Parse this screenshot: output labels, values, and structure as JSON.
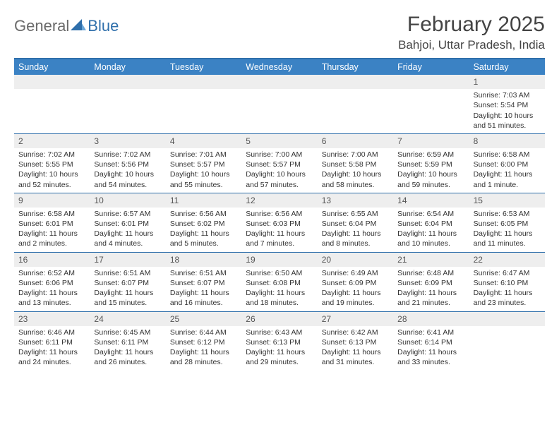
{
  "logo": {
    "general": "General",
    "blue": "Blue"
  },
  "title": "February 2025",
  "location": "Bahjoi, Uttar Pradesh, India",
  "colors": {
    "header_bar": "#3b82c4",
    "divider": "#2f6fab",
    "daynum_bg": "#eeeeee",
    "text": "#333333",
    "title_text": "#444444"
  },
  "daynames": [
    "Sunday",
    "Monday",
    "Tuesday",
    "Wednesday",
    "Thursday",
    "Friday",
    "Saturday"
  ],
  "weeks": [
    [
      {
        "empty": true
      },
      {
        "empty": true
      },
      {
        "empty": true
      },
      {
        "empty": true
      },
      {
        "empty": true
      },
      {
        "empty": true
      },
      {
        "day": "1",
        "sunrise": "Sunrise: 7:03 AM",
        "sunset": "Sunset: 5:54 PM",
        "daylight1": "Daylight: 10 hours",
        "daylight2": "and 51 minutes."
      }
    ],
    [
      {
        "day": "2",
        "sunrise": "Sunrise: 7:02 AM",
        "sunset": "Sunset: 5:55 PM",
        "daylight1": "Daylight: 10 hours",
        "daylight2": "and 52 minutes."
      },
      {
        "day": "3",
        "sunrise": "Sunrise: 7:02 AM",
        "sunset": "Sunset: 5:56 PM",
        "daylight1": "Daylight: 10 hours",
        "daylight2": "and 54 minutes."
      },
      {
        "day": "4",
        "sunrise": "Sunrise: 7:01 AM",
        "sunset": "Sunset: 5:57 PM",
        "daylight1": "Daylight: 10 hours",
        "daylight2": "and 55 minutes."
      },
      {
        "day": "5",
        "sunrise": "Sunrise: 7:00 AM",
        "sunset": "Sunset: 5:57 PM",
        "daylight1": "Daylight: 10 hours",
        "daylight2": "and 57 minutes."
      },
      {
        "day": "6",
        "sunrise": "Sunrise: 7:00 AM",
        "sunset": "Sunset: 5:58 PM",
        "daylight1": "Daylight: 10 hours",
        "daylight2": "and 58 minutes."
      },
      {
        "day": "7",
        "sunrise": "Sunrise: 6:59 AM",
        "sunset": "Sunset: 5:59 PM",
        "daylight1": "Daylight: 10 hours",
        "daylight2": "and 59 minutes."
      },
      {
        "day": "8",
        "sunrise": "Sunrise: 6:58 AM",
        "sunset": "Sunset: 6:00 PM",
        "daylight1": "Daylight: 11 hours",
        "daylight2": "and 1 minute."
      }
    ],
    [
      {
        "day": "9",
        "sunrise": "Sunrise: 6:58 AM",
        "sunset": "Sunset: 6:01 PM",
        "daylight1": "Daylight: 11 hours",
        "daylight2": "and 2 minutes."
      },
      {
        "day": "10",
        "sunrise": "Sunrise: 6:57 AM",
        "sunset": "Sunset: 6:01 PM",
        "daylight1": "Daylight: 11 hours",
        "daylight2": "and 4 minutes."
      },
      {
        "day": "11",
        "sunrise": "Sunrise: 6:56 AM",
        "sunset": "Sunset: 6:02 PM",
        "daylight1": "Daylight: 11 hours",
        "daylight2": "and 5 minutes."
      },
      {
        "day": "12",
        "sunrise": "Sunrise: 6:56 AM",
        "sunset": "Sunset: 6:03 PM",
        "daylight1": "Daylight: 11 hours",
        "daylight2": "and 7 minutes."
      },
      {
        "day": "13",
        "sunrise": "Sunrise: 6:55 AM",
        "sunset": "Sunset: 6:04 PM",
        "daylight1": "Daylight: 11 hours",
        "daylight2": "and 8 minutes."
      },
      {
        "day": "14",
        "sunrise": "Sunrise: 6:54 AM",
        "sunset": "Sunset: 6:04 PM",
        "daylight1": "Daylight: 11 hours",
        "daylight2": "and 10 minutes."
      },
      {
        "day": "15",
        "sunrise": "Sunrise: 6:53 AM",
        "sunset": "Sunset: 6:05 PM",
        "daylight1": "Daylight: 11 hours",
        "daylight2": "and 11 minutes."
      }
    ],
    [
      {
        "day": "16",
        "sunrise": "Sunrise: 6:52 AM",
        "sunset": "Sunset: 6:06 PM",
        "daylight1": "Daylight: 11 hours",
        "daylight2": "and 13 minutes."
      },
      {
        "day": "17",
        "sunrise": "Sunrise: 6:51 AM",
        "sunset": "Sunset: 6:07 PM",
        "daylight1": "Daylight: 11 hours",
        "daylight2": "and 15 minutes."
      },
      {
        "day": "18",
        "sunrise": "Sunrise: 6:51 AM",
        "sunset": "Sunset: 6:07 PM",
        "daylight1": "Daylight: 11 hours",
        "daylight2": "and 16 minutes."
      },
      {
        "day": "19",
        "sunrise": "Sunrise: 6:50 AM",
        "sunset": "Sunset: 6:08 PM",
        "daylight1": "Daylight: 11 hours",
        "daylight2": "and 18 minutes."
      },
      {
        "day": "20",
        "sunrise": "Sunrise: 6:49 AM",
        "sunset": "Sunset: 6:09 PM",
        "daylight1": "Daylight: 11 hours",
        "daylight2": "and 19 minutes."
      },
      {
        "day": "21",
        "sunrise": "Sunrise: 6:48 AM",
        "sunset": "Sunset: 6:09 PM",
        "daylight1": "Daylight: 11 hours",
        "daylight2": "and 21 minutes."
      },
      {
        "day": "22",
        "sunrise": "Sunrise: 6:47 AM",
        "sunset": "Sunset: 6:10 PM",
        "daylight1": "Daylight: 11 hours",
        "daylight2": "and 23 minutes."
      }
    ],
    [
      {
        "day": "23",
        "sunrise": "Sunrise: 6:46 AM",
        "sunset": "Sunset: 6:11 PM",
        "daylight1": "Daylight: 11 hours",
        "daylight2": "and 24 minutes."
      },
      {
        "day": "24",
        "sunrise": "Sunrise: 6:45 AM",
        "sunset": "Sunset: 6:11 PM",
        "daylight1": "Daylight: 11 hours",
        "daylight2": "and 26 minutes."
      },
      {
        "day": "25",
        "sunrise": "Sunrise: 6:44 AM",
        "sunset": "Sunset: 6:12 PM",
        "daylight1": "Daylight: 11 hours",
        "daylight2": "and 28 minutes."
      },
      {
        "day": "26",
        "sunrise": "Sunrise: 6:43 AM",
        "sunset": "Sunset: 6:13 PM",
        "daylight1": "Daylight: 11 hours",
        "daylight2": "and 29 minutes."
      },
      {
        "day": "27",
        "sunrise": "Sunrise: 6:42 AM",
        "sunset": "Sunset: 6:13 PM",
        "daylight1": "Daylight: 11 hours",
        "daylight2": "and 31 minutes."
      },
      {
        "day": "28",
        "sunrise": "Sunrise: 6:41 AM",
        "sunset": "Sunset: 6:14 PM",
        "daylight1": "Daylight: 11 hours",
        "daylight2": "and 33 minutes."
      },
      {
        "empty": true
      }
    ]
  ]
}
